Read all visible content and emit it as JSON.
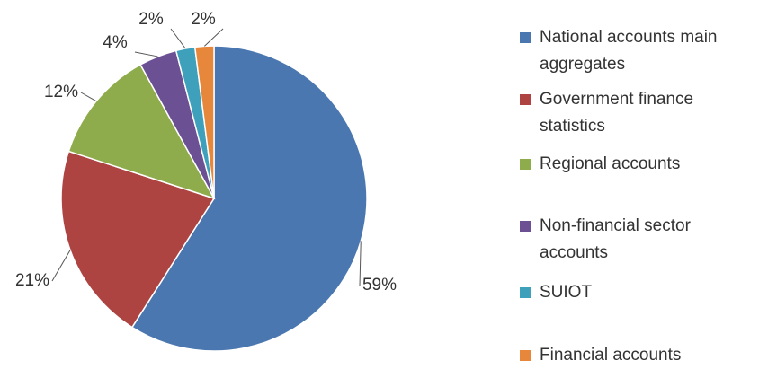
{
  "chart_data": {
    "type": "pie",
    "categories": [
      "National accounts main aggregates",
      "Government finance statistics",
      "Regional accounts",
      "Non-financial sector accounts",
      "SUIOT",
      "Financial accounts"
    ],
    "values": [
      59,
      21,
      12,
      4,
      2,
      2
    ],
    "value_labels": [
      "59%",
      "21%",
      "12%",
      "4%",
      "2%",
      "2%"
    ],
    "colors": [
      "#4a77b0",
      "#ad4441",
      "#8eac4c",
      "#6b5093",
      "#3ea0bb",
      "#e6873b"
    ],
    "legend": "right"
  }
}
